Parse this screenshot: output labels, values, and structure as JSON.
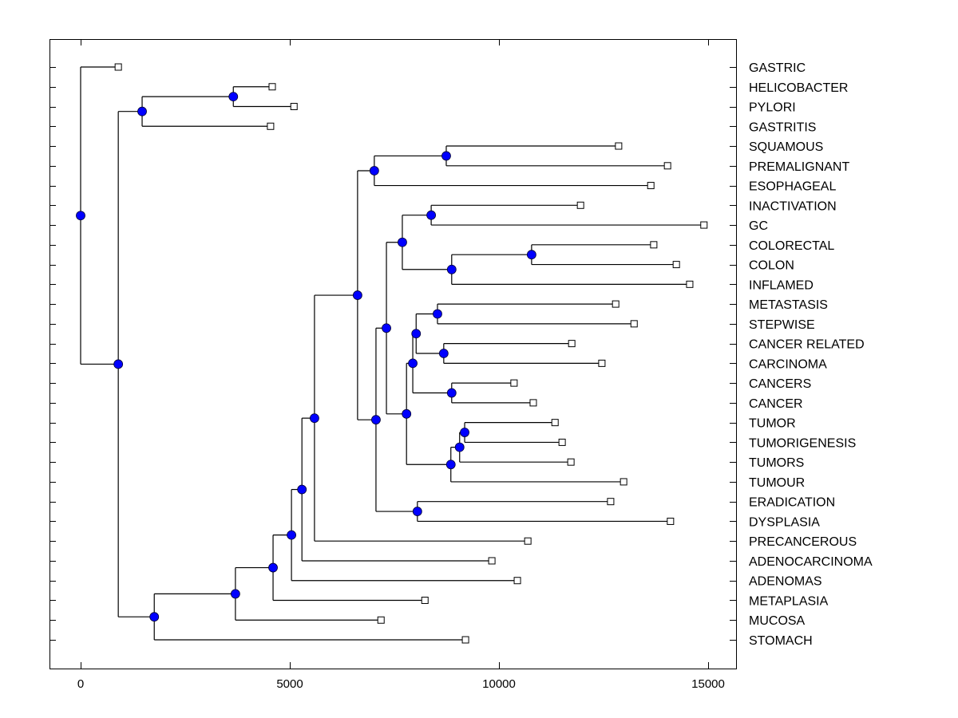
{
  "chart_data": {
    "type": "dendrogram",
    "title": "",
    "xlabel": "",
    "ylabel": "",
    "xlim": [
      -750,
      15650
    ],
    "xticks": [
      0,
      5000,
      10000,
      15000
    ],
    "xtick_labels": [
      "0",
      "5000",
      "10000",
      "15000"
    ],
    "grid": false,
    "orientation": "left-to-right",
    "leaf_label_position": "right",
    "colors": {
      "internal_node": "#0000ff",
      "leaf_marker": "#ffffff",
      "line": "#000000"
    },
    "leaves": [
      {
        "label": "GASTRIC",
        "value": 900
      },
      {
        "label": "HELICOBACTER",
        "value": 4580
      },
      {
        "label": "PYLORI",
        "value": 5100
      },
      {
        "label": "GASTRITIS",
        "value": 4540
      },
      {
        "label": "SQUAMOUS",
        "value": 12860
      },
      {
        "label": "PREMALIGNANT",
        "value": 14030
      },
      {
        "label": "ESOPHAGEAL",
        "value": 13630
      },
      {
        "label": "INACTIVATION",
        "value": 11950
      },
      {
        "label": "GC",
        "value": 14900
      },
      {
        "label": "COLORECTAL",
        "value": 13700
      },
      {
        "label": "COLON",
        "value": 14240
      },
      {
        "label": "INFLAMED",
        "value": 14560
      },
      {
        "label": "METASTASIS",
        "value": 12790
      },
      {
        "label": "STEPWISE",
        "value": 13230
      },
      {
        "label": "CANCER RELATED",
        "value": 11740
      },
      {
        "label": "CARCINOMA",
        "value": 12460
      },
      {
        "label": "CANCERS",
        "value": 10360
      },
      {
        "label": "CANCER",
        "value": 10820
      },
      {
        "label": "TUMOR",
        "value": 11340
      },
      {
        "label": "TUMORIGENESIS",
        "value": 11510
      },
      {
        "label": "TUMORS",
        "value": 11720
      },
      {
        "label": "TUMOUR",
        "value": 12980
      },
      {
        "label": "ERADICATION",
        "value": 12670
      },
      {
        "label": "DYSPLASIA",
        "value": 14100
      },
      {
        "label": "PRECANCEROUS",
        "value": 10690
      },
      {
        "label": "ADENOCARCINOMA",
        "value": 9830
      },
      {
        "label": "ADENOMAS",
        "value": 10440
      },
      {
        "label": "METAPLASIA",
        "value": 8230
      },
      {
        "label": "MUCOSA",
        "value": 7180
      },
      {
        "label": "STOMACH",
        "value": 9200
      }
    ],
    "tree": {
      "value": 0,
      "children": [
        {
          "leaf": 0
        },
        {
          "value": 900,
          "children": [
            {
              "value": 1470,
              "children": [
                {
                  "value": 3650,
                  "children": [
                    {
                      "leaf": 1
                    },
                    {
                      "leaf": 2
                    }
                  ]
                },
                {
                  "leaf": 3
                }
              ]
            },
            {
              "value": 1760,
              "children": [
                {
                  "value": 3700,
                  "children": [
                    {
                      "value": 4600,
                      "children": [
                        {
                          "value": 5040,
                          "children": [
                            {
                              "value": 5290,
                              "children": [
                                {
                                  "value": 5590,
                                  "children": [
                                    {
                                      "value": 6620,
                                      "children": [
                                        {
                                          "value": 7020,
                                          "children": [
                                            {
                                              "value": 8740,
                                              "children": [
                                                {
                                                  "leaf": 4
                                                },
                                                {
                                                  "leaf": 5
                                                }
                                              ]
                                            },
                                            {
                                              "leaf": 6
                                            }
                                          ]
                                        },
                                        {
                                          "value": 7060,
                                          "children": [
                                            {
                                              "value": 7310,
                                              "children": [
                                                {
                                                  "value": 7690,
                                                  "children": [
                                                    {
                                                      "value": 8380,
                                                      "children": [
                                                        {
                                                          "leaf": 7
                                                        },
                                                        {
                                                          "leaf": 8
                                                        }
                                                      ]
                                                    },
                                                    {
                                                      "value": 8870,
                                                      "children": [
                                                        {
                                                          "value": 10780,
                                                          "children": [
                                                            {
                                                              "leaf": 9
                                                            },
                                                            {
                                                              "leaf": 10
                                                            }
                                                          ]
                                                        },
                                                        {
                                                          "leaf": 11
                                                        }
                                                      ]
                                                    }
                                                  ]
                                                },
                                                {
                                                  "value": 7790,
                                                  "children": [
                                                    {
                                                      "value": 7940,
                                                      "children": [
                                                        {
                                                          "value": 8020,
                                                          "children": [
                                                            {
                                                              "value": 8530,
                                                              "children": [
                                                                {
                                                                  "leaf": 12
                                                                },
                                                                {
                                                                  "leaf": 13
                                                                }
                                                              ]
                                                            },
                                                            {
                                                              "value": 8680,
                                                              "children": [
                                                                {
                                                                  "leaf": 14
                                                                },
                                                                {
                                                                  "leaf": 15
                                                                }
                                                              ]
                                                            }
                                                          ]
                                                        },
                                                        {
                                                          "value": 8870,
                                                          "children": [
                                                            {
                                                              "leaf": 16
                                                            },
                                                            {
                                                              "leaf": 17
                                                            }
                                                          ]
                                                        }
                                                      ]
                                                    },
                                                    {
                                                      "value": 8850,
                                                      "children": [
                                                        {
                                                          "value": 9060,
                                                          "children": [
                                                            {
                                                              "value": 9180,
                                                              "children": [
                                                                {
                                                                  "leaf": 18
                                                                },
                                                                {
                                                                  "leaf": 19
                                                                }
                                                              ]
                                                            },
                                                            {
                                                              "leaf": 20
                                                            }
                                                          ]
                                                        },
                                                        {
                                                          "leaf": 21
                                                        }
                                                      ]
                                                    }
                                                  ]
                                                }
                                              ]
                                            },
                                            {
                                              "value": 8050,
                                              "children": [
                                                {
                                                  "leaf": 22
                                                },
                                                {
                                                  "leaf": 23
                                                }
                                              ]
                                            }
                                          ]
                                        }
                                      ]
                                    },
                                    {
                                      "leaf": 24
                                    }
                                  ]
                                },
                                {
                                  "leaf": 25
                                }
                              ]
                            },
                            {
                              "leaf": 26
                            }
                          ]
                        },
                        {
                          "leaf": 27
                        }
                      ]
                    },
                    {
                      "leaf": 28
                    }
                  ]
                },
                {
                  "leaf": 29
                }
              ]
            }
          ]
        }
      ]
    }
  }
}
